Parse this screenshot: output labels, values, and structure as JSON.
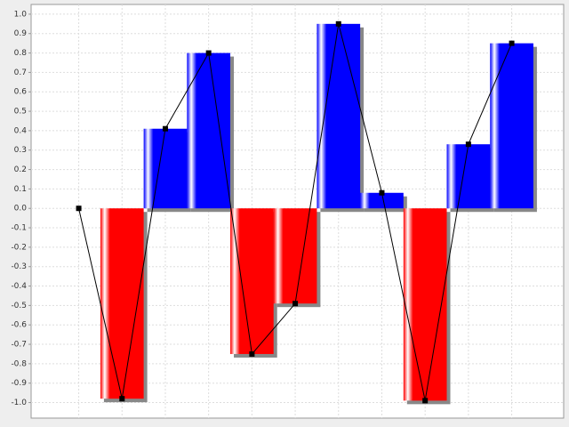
{
  "chart_data": {
    "type": "bar",
    "line_overlay": true,
    "categories": [
      null,
      null,
      null,
      null,
      null,
      null,
      null,
      null,
      null,
      null,
      null
    ],
    "values": [
      0,
      -0.98,
      0.41,
      0.8,
      -0.75,
      -0.49,
      0.95,
      0.08,
      -0.99,
      0.33,
      0.85
    ],
    "positive_color": "#0000ff",
    "negative_color": "#ff0000",
    "line_color": "#000000",
    "ylim": [
      -1.08,
      1.05
    ],
    "yticks": [
      {
        "value": 1,
        "label": "1.0"
      },
      0.9,
      0.8,
      0.7,
      0.6,
      0.5,
      0.4,
      0.3,
      0.2,
      0.1,
      {
        "value": 0,
        "label": "0.0"
      },
      -0.1,
      -0.2,
      -0.3,
      -0.4,
      -0.5,
      -0.6,
      -0.7,
      -0.8,
      -0.9,
      {
        "value": -1,
        "label": "-1.0"
      }
    ],
    "grid": true
  }
}
